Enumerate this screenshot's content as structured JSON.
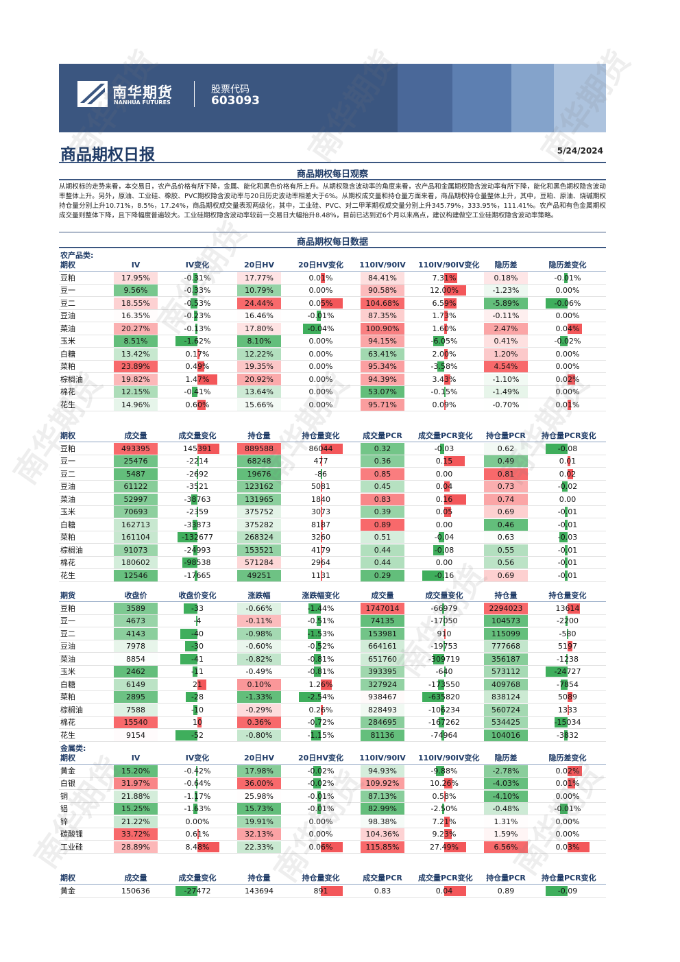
{
  "header": {
    "logo_cn": "南华期货",
    "logo_en": "NANHUA FUTURES",
    "stock_code_label": "股票代码",
    "stock_code": "603093"
  },
  "watermark": "南华期货",
  "title": "商品期权日报",
  "date": "5/24/2024",
  "observation": {
    "title": "商品期权每日观察",
    "text": "从期权标的走势来看，本交易日，农产品价格有所下降，金属、能化和黑色价格有所上升。从期权隐含波动率的角度来看，农产品和金属期权隐含波动率有所下降，能化和黑色期权隐含波动率整体上升。另外，原油、工业硅、橡胶、PVC期权隐含波动率与20日历史波动率相差大于6%。从期权成交量和持仓量方面来看，商品期权持仓量整体上升，其中，豆粕、原油、烧碱期权持仓量分别上升10.71%，8.5%，17.24%，商品期权成交量表现两级化，其中，工业硅、PVC、对二甲苯期权成交量分别上升345.79%，333.95%，111.41%。农产品和有色金属期权成交量则整体下降，且下降幅度普遍较大。工业硅期权隐含波动率较前一交易日大幅抬升8.48%，目前已达到近6个月以来高点，建议构建做空工业硅期权隐含波动率策略。"
  },
  "data_section_title": "商品期权每日数据",
  "tables": [
    {
      "label": "农产品类:",
      "header": [
        "期权",
        "IV",
        "IV变化",
        "20日HV",
        "20日HV变化",
        "110IV/90IV",
        "110IV/90IV变化",
        "隐历差",
        "隐历差变化"
      ],
      "rows": [
        [
          "豆粕",
          "17.95%",
          "-0.31%",
          "17.77%",
          "0.01%",
          "84.41%",
          "7.31%",
          "0.18%",
          "-0.01%"
        ],
        [
          "豆一",
          "9.56%",
          "-0.33%",
          "10.79%",
          "0.00%",
          "90.58%",
          "12.00%",
          "-1.23%",
          "0.00%"
        ],
        [
          "豆二",
          "18.55%",
          "-0.53%",
          "24.44%",
          "0.05%",
          "104.68%",
          "6.59%",
          "-5.89%",
          "-0.06%"
        ],
        [
          "豆油",
          "16.35%",
          "-0.23%",
          "16.46%",
          "-0.01%",
          "87.35%",
          "1.73%",
          "-0.11%",
          "0.00%"
        ],
        [
          "菜油",
          "20.27%",
          "-0.13%",
          "17.80%",
          "-0.04%",
          "100.90%",
          "1.60%",
          "2.47%",
          "0.04%"
        ],
        [
          "玉米",
          "8.51%",
          "-1.62%",
          "8.10%",
          "0.00%",
          "94.15%",
          "-6.05%",
          "0.41%",
          "-0.02%"
        ],
        [
          "白糖",
          "13.42%",
          "0.17%",
          "12.22%",
          "0.00%",
          "63.41%",
          "2.00%",
          "1.20%",
          "0.00%"
        ],
        [
          "菜粕",
          "23.89%",
          "0.49%",
          "19.35%",
          "0.00%",
          "95.34%",
          "-3.58%",
          "4.54%",
          "0.00%"
        ],
        [
          "棕榈油",
          "19.82%",
          "1.47%",
          "20.92%",
          "0.00%",
          "94.39%",
          "3.43%",
          "-1.10%",
          "0.02%"
        ],
        [
          "棉花",
          "12.15%",
          "-0.41%",
          "13.64%",
          "0.00%",
          "53.07%",
          "-0.15%",
          "-1.49%",
          "0.00%"
        ],
        [
          "花生",
          "14.96%",
          "0.60%",
          "15.66%",
          "0.00%",
          "95.71%",
          "0.09%",
          "-0.70%",
          "0.01%"
        ]
      ]
    },
    {
      "header": [
        "期权",
        "成交量",
        "成交量变化",
        "持仓量",
        "持仓量变化",
        "成交量PCR",
        "成交量PCR变化",
        "持仓量PCR",
        "持仓量PCR变化"
      ],
      "rows": [
        [
          "豆粕",
          "493395",
          "145391",
          "889588",
          "86044",
          "0.32",
          "-0.03",
          "0.62",
          "-0.08"
        ],
        [
          "豆一",
          "25476",
          "-2214",
          "68248",
          "477",
          "0.36",
          "0.15",
          "0.49",
          "0.01"
        ],
        [
          "豆二",
          "5487",
          "-2692",
          "19676",
          "-86",
          "0.85",
          "0.00",
          "0.81",
          "0.02"
        ],
        [
          "豆油",
          "61122",
          "-3521",
          "123162",
          "5081",
          "0.45",
          "0.04",
          "0.73",
          "-0.02"
        ],
        [
          "菜油",
          "52997",
          "-38763",
          "131965",
          "1840",
          "0.83",
          "0.16",
          "0.74",
          "0.00"
        ],
        [
          "玉米",
          "70693",
          "-2359",
          "375752",
          "3073",
          "0.39",
          "0.05",
          "0.69",
          "-0.01"
        ],
        [
          "白糖",
          "162713",
          "-33873",
          "375282",
          "8187",
          "0.89",
          "0.00",
          "0.46",
          "-0.01"
        ],
        [
          "菜粕",
          "161104",
          "-132677",
          "268324",
          "3260",
          "0.51",
          "-0.04",
          "0.63",
          "-0.03"
        ],
        [
          "棕榈油",
          "91073",
          "-24993",
          "153521",
          "4179",
          "0.44",
          "-0.08",
          "0.55",
          "-0.01"
        ],
        [
          "棉花",
          "180602",
          "-98538",
          "571284",
          "2964",
          "0.44",
          "0.00",
          "0.56",
          "-0.01"
        ],
        [
          "花生",
          "12546",
          "-17665",
          "49251",
          "1131",
          "0.29",
          "-0.16",
          "0.69",
          "-0.01"
        ]
      ]
    },
    {
      "header": [
        "期货",
        "收盘价",
        "收盘价变化",
        "涨跌幅",
        "涨跌幅变化",
        "成交量",
        "成交量变化",
        "持仓量",
        "持仓量变化"
      ],
      "rows": [
        [
          "豆粕",
          "3589",
          "-33",
          "-0.66%",
          "-1.44%",
          "1747014",
          "-66979",
          "2294023",
          "13614"
        ],
        [
          "豆一",
          "4673",
          "-4",
          "-0.11%",
          "-0.51%",
          "74135",
          "-17050",
          "104573",
          "-2200"
        ],
        [
          "豆二",
          "4143",
          "-40",
          "-0.98%",
          "-1.53%",
          "153981",
          "910",
          "115099",
          "-580"
        ],
        [
          "豆油",
          "7978",
          "-30",
          "-0.60%",
          "-0.52%",
          "664161",
          "-19753",
          "777668",
          "5197"
        ],
        [
          "菜油",
          "8854",
          "-41",
          "-0.82%",
          "-0.81%",
          "651760",
          "-309719",
          "356187",
          "-1238"
        ],
        [
          "玉米",
          "2462",
          "-11",
          "-0.49%",
          "-0.81%",
          "393395",
          "-640",
          "573112",
          "-24727"
        ],
        [
          "白糖",
          "6149",
          "21",
          "0.10%",
          "1.26%",
          "327924",
          "-173550",
          "409768",
          "-7854"
        ],
        [
          "菜粕",
          "2895",
          "-28",
          "-1.33%",
          "-2.54%",
          "938467",
          "-635820",
          "838124",
          "5089"
        ],
        [
          "棕榈油",
          "7588",
          "-10",
          "-0.29%",
          "0.26%",
          "828493",
          "-106234",
          "560724",
          "1333"
        ],
        [
          "棉花",
          "15540",
          "10",
          "0.36%",
          "-0.72%",
          "284695",
          "-167262",
          "534425",
          "-15034"
        ],
        [
          "花生",
          "9154",
          "-52",
          "-0.80%",
          "-1.15%",
          "81136",
          "-74964",
          "104016",
          "-3832"
        ]
      ]
    },
    {
      "label": "金属类:",
      "header": [
        "期权",
        "IV",
        "IV变化",
        "20日HV",
        "20日HV变化",
        "110IV/90IV",
        "110IV/90IV变化",
        "隐历差",
        "隐历差变化"
      ],
      "rows": [
        [
          "黄金",
          "15.20%",
          "-0.42%",
          "17.98%",
          "-0.02%",
          "94.93%",
          "-9.88%",
          "-2.78%",
          "0.02%"
        ],
        [
          "白银",
          "31.97%",
          "-0.64%",
          "36.00%",
          "-0.02%",
          "109.92%",
          "10.26%",
          "-4.03%",
          "0.01%"
        ],
        [
          "铜",
          "21.88%",
          "-1.17%",
          "25.98%",
          "-0.01%",
          "87.13%",
          "0.58%",
          "-4.10%",
          "0.00%"
        ],
        [
          "铝",
          "15.25%",
          "-1.63%",
          "15.73%",
          "-0.01%",
          "82.99%",
          "-2.50%",
          "-0.48%",
          "-0.01%"
        ],
        [
          "锌",
          "21.22%",
          "0.00%",
          "19.91%",
          "0.00%",
          "98.38%",
          "7.21%",
          "1.31%",
          "0.00%"
        ],
        [
          "碳酸锂",
          "33.72%",
          "0.61%",
          "32.13%",
          "0.00%",
          "104.36%",
          "9.23%",
          "1.59%",
          "0.00%"
        ],
        [
          "工业硅",
          "28.89%",
          "8.48%",
          "22.33%",
          "0.06%",
          "115.85%",
          "27.49%",
          "6.56%",
          "0.03%"
        ]
      ]
    },
    {
      "header": [
        "期权",
        "成交量",
        "成交量变化",
        "持仓量",
        "持仓量变化",
        "成交量PCR",
        "成交量PCR变化",
        "持仓量PCR",
        "持仓量PCR变化"
      ],
      "rows": [
        [
          "黄金",
          "150636",
          "-27472",
          "143694",
          "891",
          "0.83",
          "0.04",
          "0.89",
          "-0.09"
        ]
      ]
    }
  ]
}
